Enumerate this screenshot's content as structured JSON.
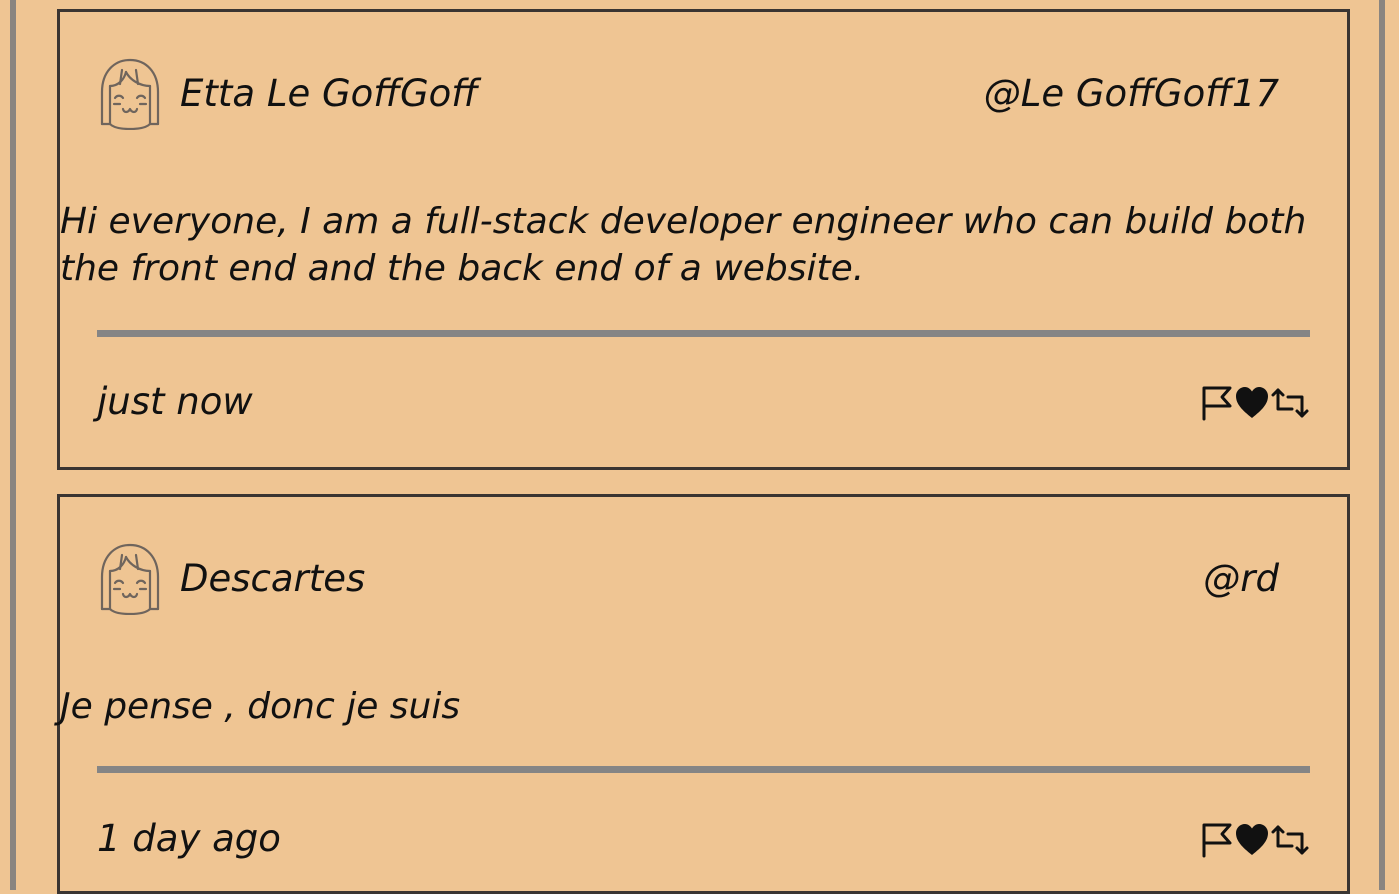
{
  "tweets": [
    {
      "name": "Etta Le GoffGoff",
      "handle": "@Le GoffGoff17",
      "content": "Hi everyone, I am a full-stack developer engineer who can build both the front end and the back end of a website.",
      "time": "just now",
      "avatar_icon": "girl-avatar-icon",
      "action_icons": [
        "flag-icon",
        "heart-icon",
        "retweet-icon"
      ]
    },
    {
      "name": "Descartes",
      "handle": "@rd",
      "content": "Je pense , donc je suis",
      "time": "1 day ago",
      "avatar_icon": "girl-avatar-icon",
      "action_icons": [
        "flag-icon",
        "heart-icon",
        "retweet-icon"
      ]
    }
  ],
  "colors": {
    "background": "#efc593",
    "border": "#3a3532",
    "divider": "#858585",
    "frame": "#8a8580"
  }
}
